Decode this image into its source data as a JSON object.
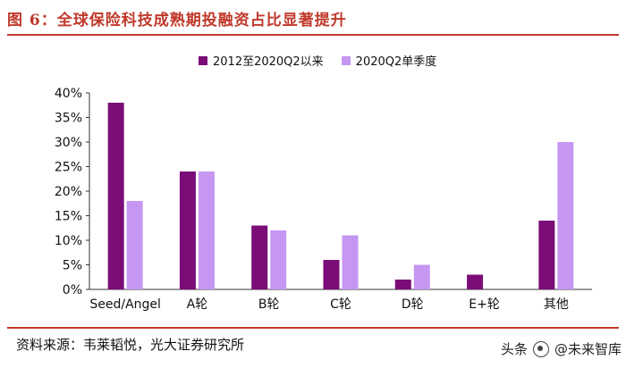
{
  "title": "图 6：全球保险科技成熟期投融资占比显著提升",
  "source": "资料来源：韦莱韬悦，光大证券研究所",
  "watermark": {
    "left": "头条",
    "right": "@未来智库"
  },
  "colors": {
    "title": "#c0392b",
    "series1": "#7b0d78",
    "series2": "#c596f2"
  },
  "chart_data": {
    "type": "bar",
    "categories": [
      "Seed/Angel",
      "A轮",
      "B轮",
      "C轮",
      "D轮",
      "E+轮",
      "其他"
    ],
    "series": [
      {
        "name": "2012至2020Q2以来",
        "values": [
          38,
          24,
          13,
          6,
          2,
          3,
          14
        ]
      },
      {
        "name": "2020Q2单季度",
        "values": [
          18,
          24,
          12,
          11,
          5,
          null,
          30
        ]
      }
    ],
    "ylim": [
      0,
      40
    ],
    "yticks": [
      "0%",
      "5%",
      "10%",
      "15%",
      "20%",
      "25%",
      "30%",
      "35%",
      "40%"
    ],
    "ytick_values": [
      0,
      5,
      10,
      15,
      20,
      25,
      30,
      35,
      40
    ],
    "grid": false,
    "legend": "top-center"
  }
}
